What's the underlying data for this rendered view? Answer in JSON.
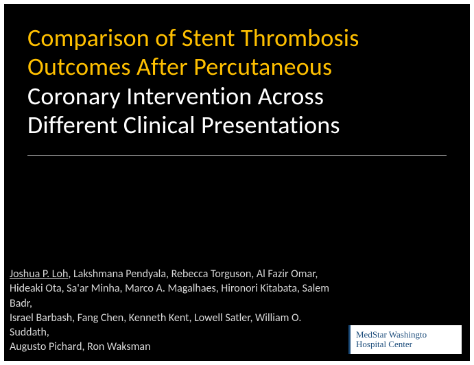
{
  "slide": {
    "title_line1": "Comparison of Stent Thrombosis",
    "title_line2": "Outcomes After Percutaneous",
    "title_line3": "Coronary Intervention Across",
    "title_line4": "Different Clinical Presentations",
    "title_accent_color": "#ffc000",
    "title_white_color": "#ffffff",
    "title_fontsize": 36,
    "background_color": "#000000",
    "outer_background": "#ffffff"
  },
  "authors": {
    "lead_author": "Joshua P. Loh",
    "remaining_line1": ", Lakshmana Pendyala, Rebecca Torguson, Al Fazir Omar,",
    "line2": "Hideaki Ota, Sa'ar Minha, Marco A. Magalhaes, Hironori Kitabata, Salem Badr,",
    "line3": "Israel Barbash, Fang Chen, Kenneth Kent, Lowell Satler, William O. Suddath,",
    "line4": "Augusto Pichard, Ron Waksman",
    "text_color": "#d9d9d9",
    "fontsize": 16
  },
  "logo": {
    "line1": "MedStar Washingto",
    "line2": "Hospital Center",
    "text_color": "#1a4b7a",
    "background": "#ffffff"
  }
}
